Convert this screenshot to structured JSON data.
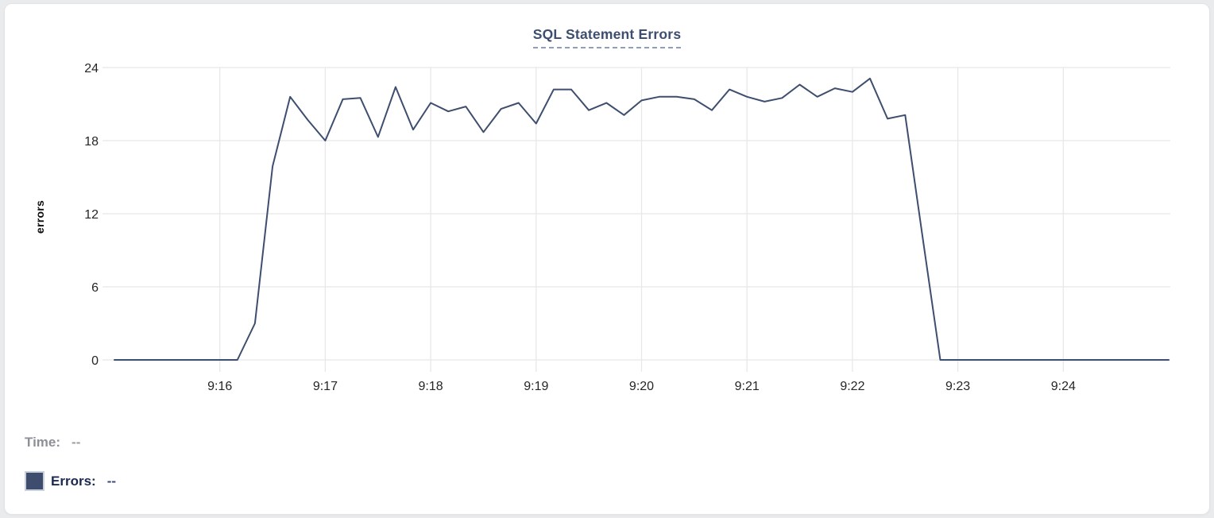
{
  "card": {
    "title": "SQL Statement Errors"
  },
  "tooltip": {
    "time_label": "Time:",
    "time_value": "--",
    "errors_label": "Errors:",
    "errors_value": "--"
  },
  "colors": {
    "accent": "#3e4e6e",
    "title": "#3d4e6e",
    "title_underline": "#8e9dc0",
    "legend_swatch": "#3e4d6d",
    "legend_text": "#1b294e",
    "muted_text": "#8d9097",
    "gridline": "#e8e8e8",
    "tick_text": "#262626"
  },
  "chart_data": {
    "type": "line",
    "title": "SQL Statement Errors",
    "xlabel": "",
    "ylabel": "errors",
    "ylim": [
      0,
      24
    ],
    "y_ticks": [
      0,
      6,
      12,
      18,
      24
    ],
    "x_tick_labels": [
      "9:16",
      "9:17",
      "9:18",
      "9:19",
      "9:20",
      "9:21",
      "9:22",
      "9:23",
      "9:24"
    ],
    "x_range": [
      "9:15:00",
      "9:25:00"
    ],
    "interval_seconds": 10,
    "grid": true,
    "legend_position": "none",
    "series": [
      {
        "name": "Errors",
        "color": "#3e4e6e",
        "times": [
          "9:15:00",
          "9:15:10",
          "9:15:20",
          "9:15:30",
          "9:15:40",
          "9:15:50",
          "9:16:00",
          "9:16:10",
          "9:16:20",
          "9:16:30",
          "9:16:40",
          "9:16:50",
          "9:17:00",
          "9:17:10",
          "9:17:20",
          "9:17:30",
          "9:17:40",
          "9:17:50",
          "9:18:00",
          "9:18:10",
          "9:18:20",
          "9:18:30",
          "9:18:40",
          "9:18:50",
          "9:19:00",
          "9:19:10",
          "9:19:20",
          "9:19:30",
          "9:19:40",
          "9:19:50",
          "9:20:00",
          "9:20:10",
          "9:20:20",
          "9:20:30",
          "9:20:40",
          "9:20:50",
          "9:21:00",
          "9:21:10",
          "9:21:20",
          "9:21:30",
          "9:21:40",
          "9:21:50",
          "9:22:00",
          "9:22:10",
          "9:22:20",
          "9:22:30",
          "9:22:40",
          "9:22:50",
          "9:23:00",
          "9:23:10",
          "9:23:20",
          "9:23:30",
          "9:23:40",
          "9:23:50",
          "9:24:00",
          "9:24:10",
          "9:24:20",
          "9:24:30",
          "9:24:40",
          "9:24:50",
          "9:25:00"
        ],
        "values": [
          0,
          0,
          0,
          0,
          0,
          0,
          0,
          0,
          3,
          15.9,
          21.6,
          19.7,
          18,
          21.4,
          21.5,
          18.3,
          22.4,
          18.9,
          21.1,
          20.4,
          20.8,
          18.7,
          20.6,
          21.1,
          19.4,
          22.2,
          22.2,
          20.5,
          21.1,
          20.1,
          21.3,
          21.6,
          21.6,
          21.4,
          20.5,
          22.2,
          21.6,
          21.2,
          21.5,
          22.6,
          21.6,
          22.3,
          22,
          23.1,
          19.8,
          20.1,
          10,
          0,
          0,
          0,
          0,
          0,
          0,
          0,
          0,
          0,
          0,
          0,
          0,
          0,
          0
        ]
      }
    ]
  }
}
